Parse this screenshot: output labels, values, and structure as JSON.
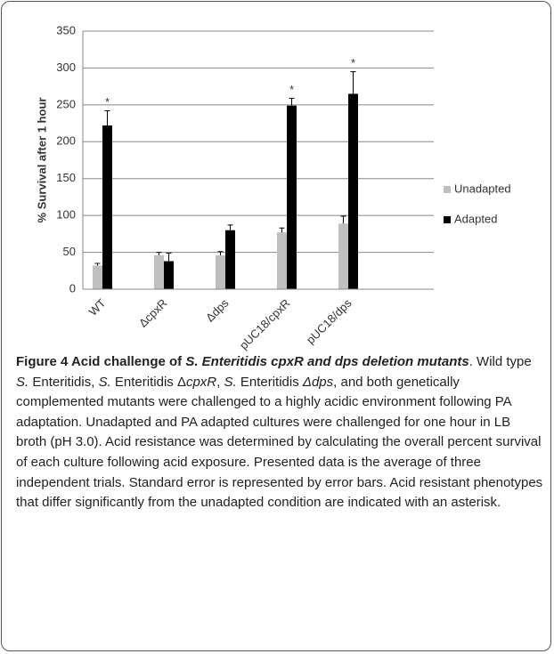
{
  "chart_data": {
    "type": "bar",
    "ylabel": "% Survival after 1 hour",
    "categories": [
      "WT",
      "ΔcpxR",
      "Δdps",
      "pUC18/cpxR",
      "pUC18/dps"
    ],
    "series": [
      {
        "name": "Unadapted",
        "color": "#bfbfbf",
        "values": [
          32,
          46,
          46,
          77,
          89
        ],
        "errors": [
          3,
          4,
          5,
          6,
          10
        ]
      },
      {
        "name": "Adapted",
        "color": "#000000",
        "values": [
          222,
          38,
          80,
          249,
          265
        ],
        "errors": [
          20,
          11,
          7,
          10,
          30
        ],
        "significance": [
          "*",
          null,
          null,
          "*",
          "*"
        ]
      }
    ],
    "ylim": [
      0,
      350
    ],
    "yticks": [
      0,
      50,
      100,
      150,
      200,
      250,
      300,
      350
    ],
    "grid": true,
    "legend": "right"
  },
  "caption": [
    {
      "text": "Figure 4 Acid challenge of ",
      "style": "bold"
    },
    {
      "text": "S. Enteritidis cpxR and dps deletion mutants",
      "style": "bold-italic"
    },
    {
      "text": ". Wild type ",
      "style": "normal"
    },
    {
      "text": "S.",
      "style": "italic"
    },
    {
      "text": " Enteritidis, ",
      "style": "normal"
    },
    {
      "text": "S.",
      "style": "italic"
    },
    {
      "text": " Enteritidis Δ",
      "style": "normal"
    },
    {
      "text": "cpxR",
      "style": "italic"
    },
    {
      "text": ", ",
      "style": "normal"
    },
    {
      "text": "S.",
      "style": "italic"
    },
    {
      "text": " Enteritidis ",
      "style": "normal"
    },
    {
      "text": "Δdps",
      "style": "italic"
    },
    {
      "text": ", and both genetically complemented mutants were challenged to a highly acidic environment following PA adaptation. Unadapted and PA adapted cultures were challenged for one hour in LB broth (pH 3.0). Acid resistance was determined by calculating the overall percent survival of each culture following acid exposure. Presented data is the average of three independent trials. Standard error is represented by error bars. Acid resistant phenotypes that differ significantly from the unadapted condition are indicated with an asterisk.",
      "style": "normal"
    }
  ]
}
